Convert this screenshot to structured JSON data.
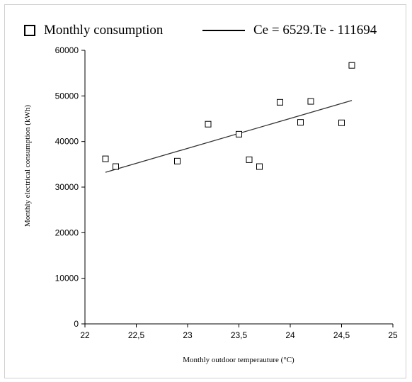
{
  "chart_data": {
    "type": "scatter",
    "title": "",
    "xlabel": "Monthly outdoor temperauture (°C)",
    "ylabel": "Monthly electrical consumption (kWh)",
    "xlim": [
      22,
      25
    ],
    "ylim": [
      0,
      60000
    ],
    "x_ticks": [
      22,
      22.5,
      23,
      23.5,
      24,
      24.5,
      25
    ],
    "x_tick_labels": [
      "22",
      "22,5",
      "23",
      "23,5",
      "24",
      "24,5",
      "25"
    ],
    "y_ticks": [
      0,
      10000,
      20000,
      30000,
      40000,
      50000,
      60000
    ],
    "y_tick_labels": [
      "0",
      "10000",
      "20000",
      "30000",
      "40000",
      "50000",
      "60000"
    ],
    "grid": false,
    "legend_position": "top",
    "series": [
      {
        "name": "Monthly consumption",
        "marker": "square-open",
        "points": [
          {
            "x": 22.2,
            "y": 36200
          },
          {
            "x": 22.3,
            "y": 34500
          },
          {
            "x": 22.9,
            "y": 35700
          },
          {
            "x": 23.2,
            "y": 43800
          },
          {
            "x": 23.5,
            "y": 41600
          },
          {
            "x": 23.6,
            "y": 36000
          },
          {
            "x": 23.7,
            "y": 34500
          },
          {
            "x": 23.9,
            "y": 48600
          },
          {
            "x": 24.1,
            "y": 44200
          },
          {
            "x": 24.2,
            "y": 48800
          },
          {
            "x": 24.5,
            "y": 44100
          },
          {
            "x": 24.6,
            "y": 56700
          }
        ]
      },
      {
        "name": "Ce = 6529.Te - 111694",
        "type": "line",
        "points": [
          {
            "x": 22.2,
            "y": 33250
          },
          {
            "x": 24.6,
            "y": 49000
          }
        ]
      }
    ],
    "colors": {
      "marker_stroke": "#000000",
      "trend_line": "#333333",
      "axis": "#000000"
    }
  }
}
